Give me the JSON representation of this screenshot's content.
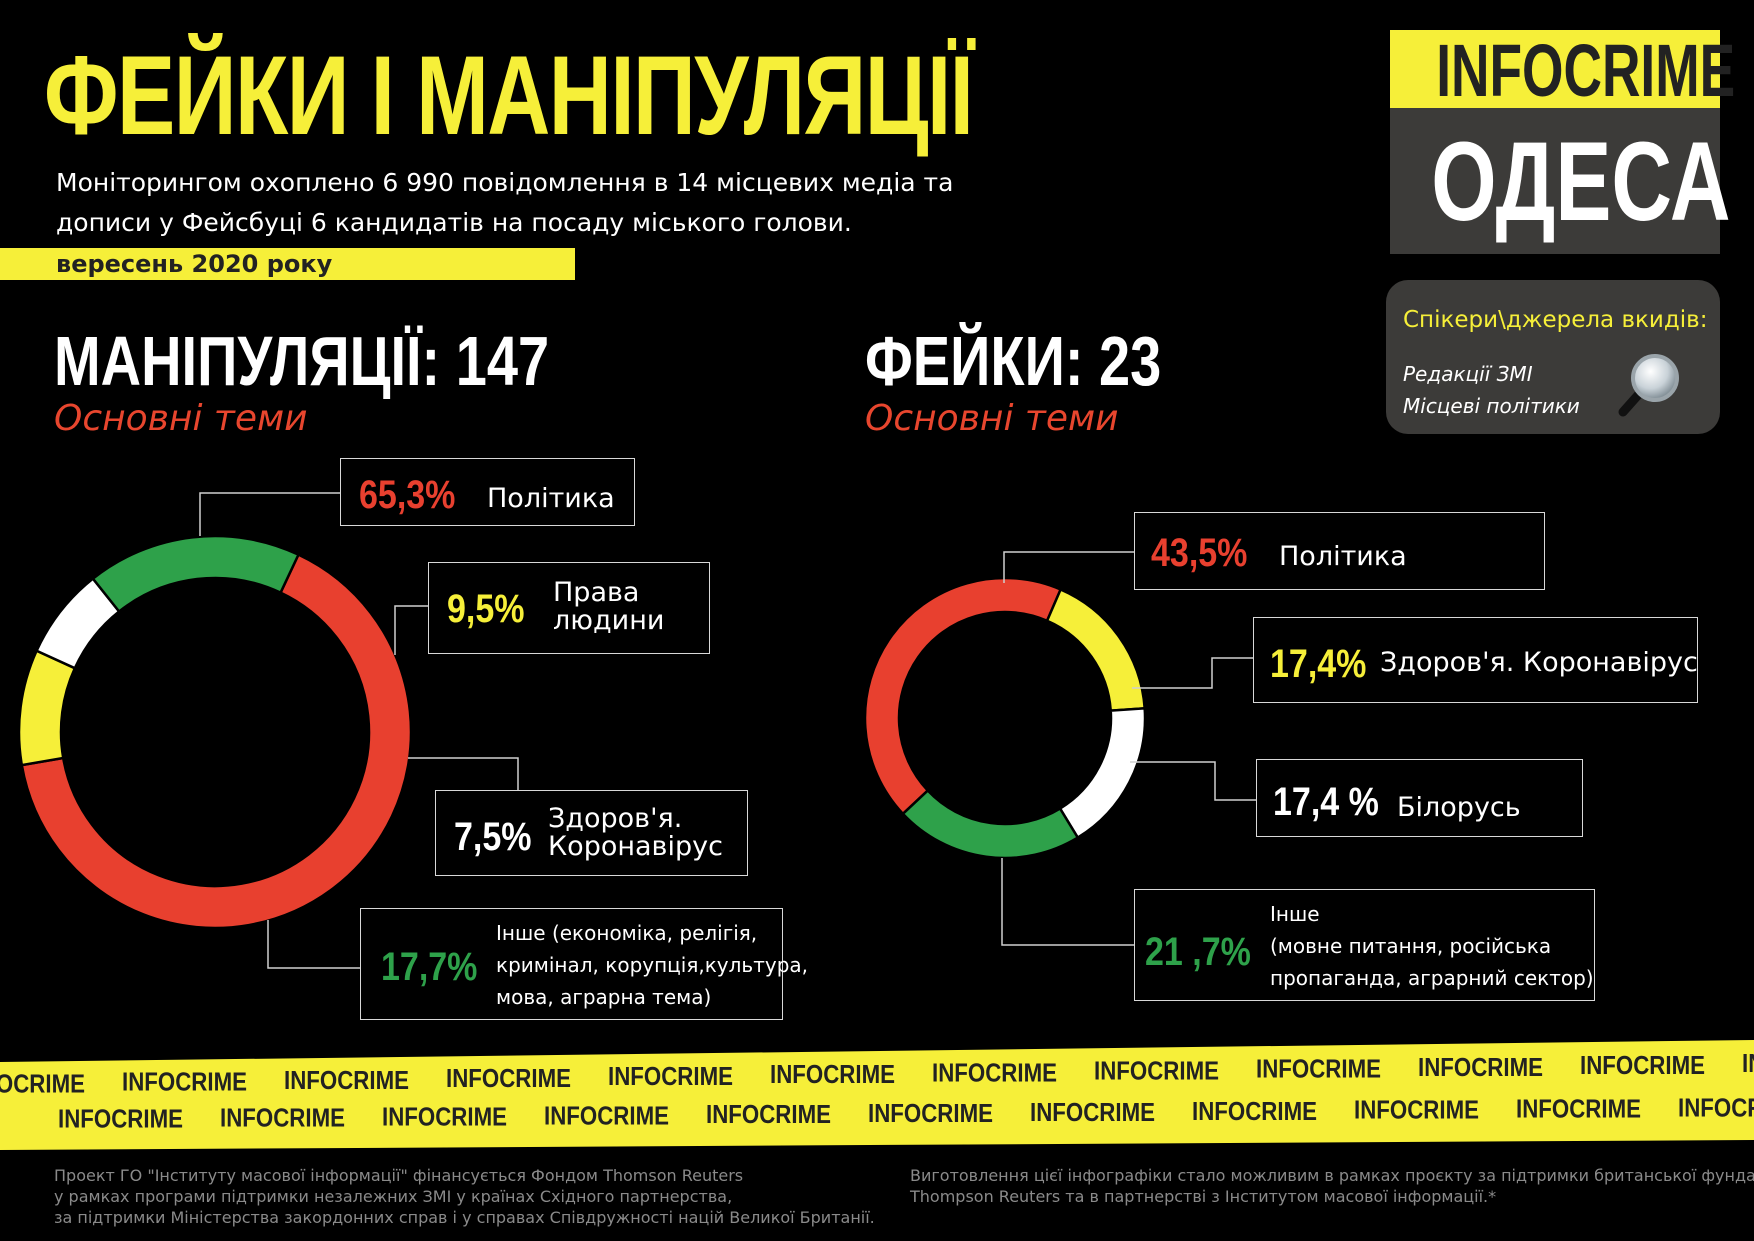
{
  "header": {
    "title": "ФЕЙКИ І МАНІПУЛЯЦІЇ",
    "intro_line1": "Моніторингом охоплено 6 990 повідомлення в 14 місцевих медіа  та",
    "intro_line2": "дописи  у Фейсбуці 6 кандидатів на посаду міського голови.",
    "date": "вересень 2020 року"
  },
  "logo": {
    "top": "INFOCRIME",
    "bottom": "ОДЕСА"
  },
  "speakers": {
    "title": "Спікери\\джерела вкидів:",
    "items": [
      "Редакції ЗМІ",
      "Місцеві політики"
    ],
    "icon": "magnifier-icon"
  },
  "colors": {
    "red": "#e8402f",
    "yellow": "#f6ef39",
    "white": "#ffffff",
    "green": "#2ea14a"
  },
  "chart_data": [
    {
      "type": "pie",
      "title": "МАНІПУЛЯЦІЇ: 147",
      "subtitle": "Основні теми",
      "slices": [
        {
          "value": 65.3,
          "pct_label": "65,3%",
          "label_lines": [
            "Політика"
          ],
          "color": "#e8402f"
        },
        {
          "value": 9.5,
          "pct_label": "9,5%",
          "label_lines": [
            "Права",
            "людини"
          ],
          "color": "#f6ef39"
        },
        {
          "value": 7.5,
          "pct_label": "7,5%",
          "label_lines": [
            "Здоров'я.",
            "Коронавірус"
          ],
          "color": "#ffffff"
        },
        {
          "value": 17.7,
          "pct_label": "17,7%",
          "label_lines": [
            "Інше (економіка, релігія,",
            "кримінал, корупція,культура,",
            "мова, аграрна тема)"
          ],
          "color": "#2ea14a"
        }
      ]
    },
    {
      "type": "pie",
      "title": "ФЕЙКИ: 23",
      "subtitle": "Основні теми",
      "slices": [
        {
          "value": 43.5,
          "pct_label": "43,5%",
          "label_lines": [
            "Політика"
          ],
          "color": "#e8402f"
        },
        {
          "value": 17.4,
          "pct_label": "17,4%",
          "label_lines": [
            "Здоров'я. Коронавірус"
          ],
          "color": "#f6ef39"
        },
        {
          "value": 17.4,
          "pct_label": "17,4 %",
          "label_lines": [
            "Білорусь"
          ],
          "color": "#ffffff"
        },
        {
          "value": 21.7,
          "pct_label": "21 ,7%",
          "label_lines": [
            "Інше",
            "(мовне питання, російська",
            "пропаганда, аграрний сектор)"
          ],
          "color": "#2ea14a"
        }
      ]
    }
  ],
  "tape_word": "INFOCRIME",
  "footer": {
    "left": [
      "Проект ГО \"Інституту масової інформації\" фінансується Фондом Thomson Reuters",
      "у рамках програми підтримки незалежних ЗМІ у країнах Східного партнерства,",
      "за підтримки Міністерства закордонних справ і у справах Співдружності націй Великої Британії."
    ],
    "right": [
      "Виготовлення цієї інфографіки стало можливим в рамках проєкту за підтримки британської фундації",
      "Thompson Reuters та в партнерстві з Інститутом масової інформації.*"
    ]
  }
}
